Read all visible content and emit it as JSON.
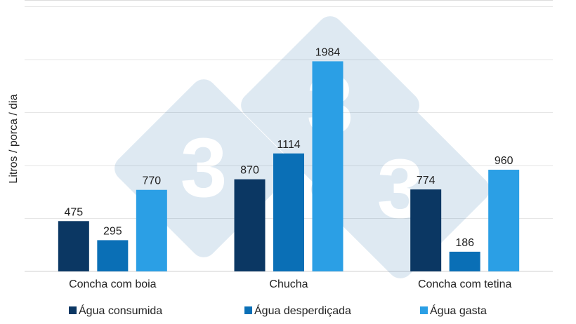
{
  "chart_data": {
    "type": "bar",
    "categories": [
      "Concha com boia",
      "Chucha",
      "Concha com tetina"
    ],
    "series": [
      {
        "name": "Água consumida",
        "values": [
          475,
          870,
          774
        ],
        "color": "#0b3763"
      },
      {
        "name": "Água desperdiçada",
        "values": [
          295,
          1114,
          186
        ],
        "color": "#0a6fb6"
      },
      {
        "name": "Água gasta",
        "values": [
          770,
          1984,
          960
        ],
        "color": "#2b9fe5"
      }
    ],
    "ylabel": "Litros / porca / dia",
    "xlabel": "",
    "ylim": [
      0,
      2500
    ],
    "grid": true,
    "legend": "bottom",
    "watermark": "333"
  }
}
